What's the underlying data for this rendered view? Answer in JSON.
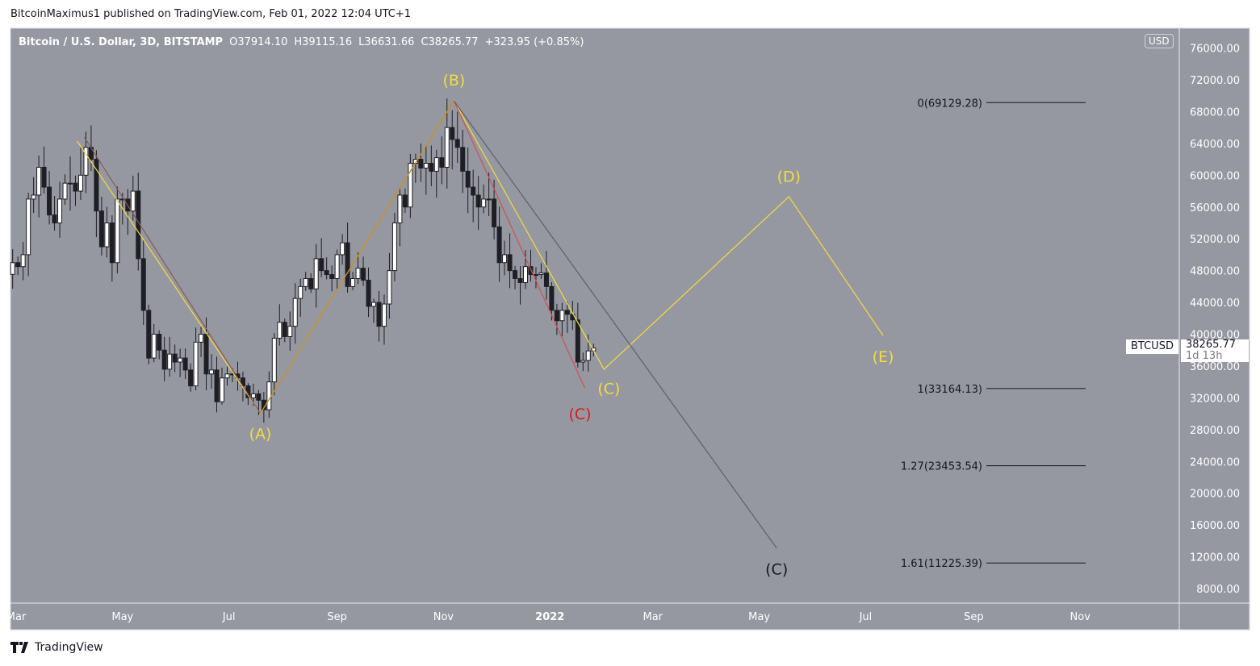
{
  "header": {
    "published": "BitcoinMaximus1 published on TradingView.com, Feb 01, 2022 12:04 UTC+1"
  },
  "legend": {
    "symbol": "Bitcoin / U.S. Dollar, 3D, BITSTAMP",
    "open": "O37914.10",
    "high": "H39115.16",
    "low": "L36631.66",
    "close": "C38265.77",
    "change": "+323.95 (+0.85%)"
  },
  "price_axis": {
    "currency_button": "USD",
    "ticks": [
      "76000.00",
      "72000.00",
      "68000.00",
      "64000.00",
      "60000.00",
      "56000.00",
      "52000.00",
      "48000.00",
      "44000.00",
      "40000.00",
      "36000.00",
      "32000.00",
      "28000.00",
      "24000.00",
      "20000.00",
      "16000.00",
      "12000.00",
      "8000.00"
    ]
  },
  "last_price": {
    "symbol": "BTCUSD",
    "price": "38265.77",
    "countdown": "1d 13h"
  },
  "footer": {
    "brand": "TradingView"
  },
  "colors": {
    "background": "#9598a1",
    "up_candle": "#ffffff",
    "down_candle": "#1e1e24",
    "yellow": "#f5dc3a",
    "red": "#e01818",
    "gray_line": "#5d6068"
  },
  "chart_data": {
    "type": "candlestick",
    "interval": "3D",
    "ylim": [
      6000,
      78000
    ],
    "xlim": [
      "2021-03-01",
      "2022-11-25"
    ],
    "x_ticks": [
      {
        "date": "2021-03-01",
        "label": "Mar"
      },
      {
        "date": "2021-05-01",
        "label": "May"
      },
      {
        "date": "2021-07-01",
        "label": "Jul"
      },
      {
        "date": "2021-09-01",
        "label": "Sep"
      },
      {
        "date": "2021-11-01",
        "label": "Nov"
      },
      {
        "date": "2022-01-01",
        "label": "2022"
      },
      {
        "date": "2022-03-01",
        "label": "Mar"
      },
      {
        "date": "2022-05-01",
        "label": "May"
      },
      {
        "date": "2022-07-01",
        "label": "Jul"
      },
      {
        "date": "2022-09-01",
        "label": "Sep"
      },
      {
        "date": "2022-11-01",
        "label": "Nov"
      }
    ],
    "first_candle": "2021-02-27",
    "closes": [
      49000,
      48500,
      50000,
      57000,
      57500,
      61000,
      58500,
      55000,
      54000,
      57000,
      59000,
      59000,
      58000,
      60000,
      63500,
      62000,
      55500,
      51000,
      54000,
      49000,
      57000,
      57000,
      55500,
      58000,
      49500,
      43000,
      37000,
      40000,
      38000,
      35600,
      37500,
      36500,
      37000,
      35500,
      33500,
      39000,
      40000,
      35000,
      35500,
      31500,
      34500,
      35000,
      35000,
      34500,
      33500,
      32000,
      32500,
      31700,
      30500,
      34000,
      39500,
      41500,
      39700,
      41000,
      44500,
      46000,
      47000,
      45700,
      49500,
      48000,
      47500,
      47000,
      50000,
      51500,
      46000,
      47000,
      48300,
      46800,
      43500,
      44000,
      41000,
      43800,
      48000,
      54000,
      57500,
      56000,
      61500,
      62000,
      60900,
      61500,
      60500,
      62200,
      61000,
      66000,
      64500,
      63500,
      60500,
      58500,
      57500,
      56000,
      57000,
      57000,
      53500,
      49000,
      50000,
      48000,
      47000,
      46500,
      48500,
      47500,
      47500,
      47700,
      46000,
      43000,
      41700,
      43000,
      42500,
      41800,
      36500,
      36700,
      37900,
      38266
    ],
    "fib_levels": [
      {
        "ratio": "0",
        "price": 69129.28,
        "label": "0(69129.28)"
      },
      {
        "ratio": "1",
        "price": 33164.13,
        "label": "1(33164.13)"
      },
      {
        "ratio": "1.27",
        "price": 23453.54,
        "label": "1.27(23453.54)"
      },
      {
        "ratio": "1.61",
        "price": 11225.39,
        "label": "1.61(11225.39)"
      }
    ],
    "wave_lines": [
      {
        "name": "yellow-abcde-path",
        "color": "#f5dc3a",
        "points": [
          [
            "2021-04-05",
            64290
          ],
          [
            "2021-07-19",
            30020
          ],
          [
            "2021-11-07",
            69360
          ],
          [
            "2022-02-01",
            35590
          ],
          [
            "2022-05-18",
            57300
          ],
          [
            "2022-07-11",
            39850
          ]
        ]
      },
      {
        "name": "dark-red-a-leg",
        "color": "#8a5a5a",
        "points": [
          [
            "2021-04-09",
            64800
          ],
          [
            "2021-07-19",
            30020
          ]
        ]
      },
      {
        "name": "orange-b-leg",
        "color": "#c8861c",
        "points": [
          [
            "2021-07-19",
            30020
          ],
          [
            "2021-11-07",
            69360
          ]
        ]
      },
      {
        "name": "red-c-leg",
        "color": "#d05050",
        "points": [
          [
            "2021-11-07",
            69360
          ],
          [
            "2022-01-21",
            33260
          ]
        ]
      },
      {
        "name": "gray-c-leg",
        "color": "#5d6068",
        "points": [
          [
            "2021-11-07",
            69360
          ],
          [
            "2022-05-11",
            13090
          ]
        ]
      }
    ],
    "wave_labels": [
      {
        "text": "(A)",
        "color": "#f5dc3a",
        "date": "2021-07-19",
        "price": 27500
      },
      {
        "text": "(B)",
        "color": "#f5dc3a",
        "date": "2021-11-07",
        "price": 72000
      },
      {
        "text": "(C)",
        "color": "#e01818",
        "date": "2022-01-21",
        "price": 30600
      },
      {
        "text": "(C)",
        "color": "#f5dc3a",
        "date": "2022-02-02",
        "price": 32900
      },
      {
        "text": "(D)",
        "color": "#f5dc3a",
        "date": "2022-05-18",
        "price": 59900
      },
      {
        "text": "(E)",
        "color": "#f5dc3a",
        "date": "2022-07-11",
        "price": 37200
      },
      {
        "text": "(C)",
        "color": "#131722",
        "date": "2022-05-11",
        "price": 10500
      }
    ]
  }
}
